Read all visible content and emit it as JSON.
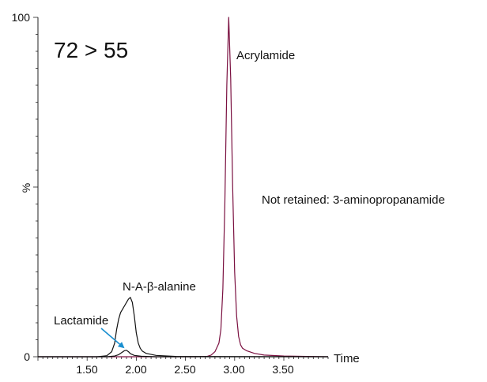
{
  "chart_data": {
    "type": "line",
    "title": "72 > 55",
    "xlabel": "Time",
    "ylabel": "%",
    "xlim": [
      1.0,
      3.95
    ],
    "ylim": [
      0,
      100
    ],
    "x_ticks": [
      "1.50",
      "2.00",
      "2.50",
      "3.00",
      "3.50"
    ],
    "y_ticks": [
      "0",
      "%",
      "100"
    ],
    "grid": false,
    "series": [
      {
        "color": "#7a1040",
        "x": [
          1.0,
          2.6,
          2.72,
          2.76,
          2.8,
          2.84,
          2.86,
          2.88,
          2.9,
          2.92,
          2.94,
          2.96,
          2.98,
          3.0,
          3.02,
          3.04,
          3.06,
          3.08,
          3.12,
          3.2,
          3.3,
          3.5,
          3.95
        ],
        "y": [
          0,
          0,
          0.1,
          0.5,
          1.5,
          4,
          8,
          20,
          45,
          80,
          100,
          82,
          50,
          25,
          12,
          6,
          3.5,
          2.5,
          1.8,
          1.0,
          0.5,
          0.2,
          0
        ]
      },
      {
        "color": "#111111",
        "x": [
          1.0,
          1.6,
          1.7,
          1.75,
          1.78,
          1.8,
          1.82,
          1.84,
          1.86,
          1.88,
          1.9,
          1.92,
          1.94,
          1.96,
          1.98,
          2.0,
          2.02,
          2.04,
          2.06,
          2.1,
          2.2,
          2.4,
          3.95
        ],
        "y": [
          0,
          0,
          0.3,
          1.5,
          4,
          8,
          11,
          13,
          14,
          15,
          16,
          17,
          17.5,
          16,
          12,
          7,
          4,
          2.5,
          1.7,
          1.0,
          0.4,
          0.1,
          0
        ]
      },
      {
        "color": "#111111",
        "x": [
          1.0,
          1.7,
          1.78,
          1.82,
          1.86,
          1.88,
          1.9,
          1.92,
          1.94,
          1.98,
          2.05,
          2.2,
          3.95
        ],
        "y": [
          0,
          0,
          0.2,
          0.6,
          1.4,
          1.8,
          1.9,
          1.5,
          0.9,
          0.4,
          0.15,
          0,
          0
        ]
      }
    ],
    "annotations": [
      {
        "text": "Acrylamide"
      },
      {
        "text": "N-A-β-alanine"
      },
      {
        "text": "Lactamide",
        "color": "#1a8fd0"
      },
      {
        "text": "Not retained: 3-aminopropanamide"
      }
    ]
  }
}
